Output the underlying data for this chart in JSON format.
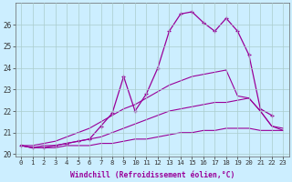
{
  "xlabel": "Windchill (Refroidissement éolien,°C)",
  "bg_color": "#cceeff",
  "grid_color": "#aacccc",
  "line_color": "#990099",
  "xlim": [
    -0.5,
    23.5
  ],
  "ylim": [
    19.9,
    27.0
  ],
  "yticks": [
    20,
    21,
    22,
    23,
    24,
    25,
    26
  ],
  "xticks": [
    0,
    1,
    2,
    3,
    4,
    5,
    6,
    7,
    8,
    9,
    10,
    11,
    12,
    13,
    14,
    15,
    16,
    17,
    18,
    19,
    20,
    21,
    22,
    23
  ],
  "series": [
    {
      "x": [
        0,
        1,
        2,
        3,
        4,
        5,
        6,
        7,
        8,
        9,
        10,
        11,
        12,
        13,
        14,
        15,
        16,
        17,
        18,
        19,
        20,
        21,
        22,
        23
      ],
      "y": [
        20.4,
        20.3,
        20.3,
        20.3,
        20.4,
        20.4,
        20.4,
        20.5,
        20.5,
        20.6,
        20.7,
        20.7,
        20.8,
        20.9,
        21.0,
        21.0,
        21.1,
        21.1,
        21.2,
        21.2,
        21.2,
        21.1,
        21.1,
        21.1
      ],
      "marker": false,
      "lw": 0.8
    },
    {
      "x": [
        0,
        1,
        2,
        3,
        4,
        5,
        6,
        7,
        8,
        9,
        10,
        11,
        12,
        13,
        14,
        15,
        16,
        17,
        18,
        19,
        20,
        21,
        22,
        23
      ],
      "y": [
        20.4,
        20.3,
        20.4,
        20.4,
        20.5,
        20.6,
        20.7,
        20.8,
        21.0,
        21.2,
        21.4,
        21.6,
        21.8,
        22.0,
        22.1,
        22.2,
        22.3,
        22.4,
        22.4,
        22.5,
        22.6,
        22.0,
        21.3,
        21.2
      ],
      "marker": false,
      "lw": 0.8
    },
    {
      "x": [
        0,
        1,
        2,
        3,
        4,
        5,
        6,
        7,
        8,
        9,
        10,
        11,
        12,
        13,
        14,
        15,
        16,
        17,
        18,
        19,
        20,
        21,
        22,
        23
      ],
      "y": [
        20.4,
        20.4,
        20.5,
        20.6,
        20.8,
        21.0,
        21.2,
        21.5,
        21.8,
        22.1,
        22.3,
        22.6,
        22.9,
        23.2,
        23.4,
        23.6,
        23.7,
        23.8,
        23.9,
        22.7,
        22.6,
        22.0,
        21.3,
        21.1
      ],
      "marker": false,
      "lw": 0.8
    },
    {
      "x": [
        0,
        1,
        2,
        3,
        4,
        5,
        6,
        7,
        8,
        9,
        10,
        11,
        12,
        13,
        14,
        15,
        16,
        17,
        18,
        19,
        20,
        21,
        22
      ],
      "y": [
        20.4,
        20.3,
        20.3,
        20.4,
        20.5,
        20.6,
        20.7,
        21.3,
        21.9,
        23.6,
        22.0,
        22.8,
        24.0,
        25.7,
        26.5,
        26.6,
        26.1,
        25.7,
        26.3,
        25.7,
        24.6,
        22.1,
        21.8
      ],
      "marker": true,
      "lw": 0.9
    }
  ]
}
